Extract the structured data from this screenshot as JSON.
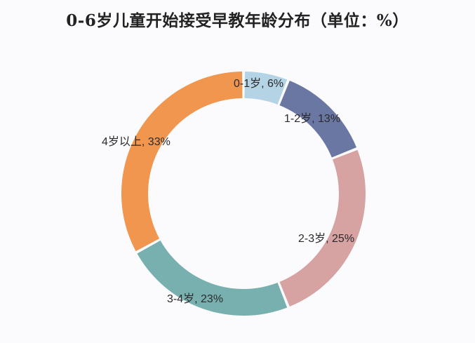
{
  "title": "0-6岁儿童开始接受早教年龄分布（单位：%）",
  "chart_data": {
    "type": "pie",
    "variant": "donut",
    "title": "0-6岁儿童开始接受早教年龄分布（单位：%）",
    "unit": "%",
    "categories": [
      "0-1岁",
      "1-2岁",
      "2-3岁",
      "3-4岁",
      "4岁以上"
    ],
    "values": [
      6,
      13,
      25,
      23,
      33
    ],
    "colors": [
      "#b4d3e4",
      "#6b77a3",
      "#d6a2a2",
      "#78b0b0",
      "#f0964f"
    ],
    "labels": [
      "0-1岁, 6%",
      "1-2岁, 13%",
      "2-3岁, 25%",
      "3-4岁, 23%",
      "4岁以上, 33%"
    ],
    "start_angle_deg": 0,
    "direction": "clockwise",
    "legend": "none"
  }
}
